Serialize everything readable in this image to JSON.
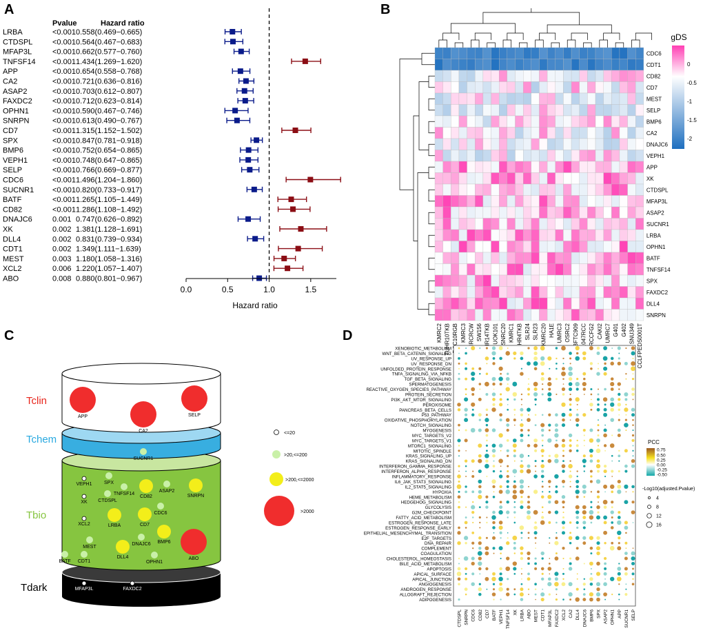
{
  "panels": {
    "A": {
      "label": "A",
      "col_pvalue": "Pvalue",
      "col_hr": "Hazard ratio",
      "xlabel": "Hazard ratio",
      "ticks": [
        "0.0",
        "0.5",
        "1.0",
        "1.5"
      ]
    },
    "B": {
      "label": "B",
      "legend_title": "gDS",
      "legend_ticks": [
        "0",
        "-0.5",
        "-1",
        "-1.5",
        "-2"
      ]
    },
    "C": {
      "label": "C",
      "tier_labels": [
        "Tclin",
        "Tchem",
        "Tbio",
        "Tdark"
      ],
      "legend": [
        "<=20",
        ">20,<=200",
        ">200,<=2000",
        ">2000"
      ]
    },
    "D": {
      "label": "D",
      "legend_title": "PCC",
      "legend_ticks": [
        "0.75",
        "0.50",
        "0.25",
        "0.00",
        "-0.25",
        "-0.50"
      ],
      "size_title": "-Log10(adjusted.Pvalue)",
      "size_ticks": [
        "4",
        "8",
        "12",
        "16"
      ]
    }
  },
  "chart_data": [
    {
      "type": "forest",
      "title": "A",
      "xlabel": "Hazard ratio",
      "xlim": [
        0,
        1.8
      ],
      "reference_line": 1.0,
      "rows": [
        {
          "gene": "LRBA",
          "p": "<0.001",
          "hr_text": "0.558(0.469−0.665)",
          "hr": 0.558,
          "lo": 0.469,
          "hi": 0.665
        },
        {
          "gene": "CTDSPL",
          "p": "<0.001",
          "hr_text": "0.564(0.467−0.683)",
          "hr": 0.564,
          "lo": 0.467,
          "hi": 0.683
        },
        {
          "gene": "MFAP3L",
          "p": "<0.001",
          "hr_text": "0.662(0.577−0.760)",
          "hr": 0.662,
          "lo": 0.577,
          "hi": 0.76
        },
        {
          "gene": "TNFSF14",
          "p": "<0.001",
          "hr_text": "1.434(1.269−1.620)",
          "hr": 1.434,
          "lo": 1.269,
          "hi": 1.62
        },
        {
          "gene": "APP",
          "p": "<0.001",
          "hr_text": "0.654(0.558−0.768)",
          "hr": 0.654,
          "lo": 0.558,
          "hi": 0.768
        },
        {
          "gene": "CA2",
          "p": "<0.001",
          "hr_text": "0.721(0.636−0.816)",
          "hr": 0.721,
          "lo": 0.636,
          "hi": 0.816
        },
        {
          "gene": "ASAP2",
          "p": "<0.001",
          "hr_text": "0.703(0.612−0.807)",
          "hr": 0.703,
          "lo": 0.612,
          "hi": 0.807
        },
        {
          "gene": "FAXDC2",
          "p": "<0.001",
          "hr_text": "0.712(0.623−0.814)",
          "hr": 0.712,
          "lo": 0.623,
          "hi": 0.814
        },
        {
          "gene": "OPHN1",
          "p": "<0.001",
          "hr_text": "0.590(0.467−0.746)",
          "hr": 0.59,
          "lo": 0.467,
          "hi": 0.746
        },
        {
          "gene": "SNRPN",
          "p": "<0.001",
          "hr_text": "0.613(0.490−0.767)",
          "hr": 0.613,
          "lo": 0.49,
          "hi": 0.767
        },
        {
          "gene": "CD7",
          "p": "<0.001",
          "hr_text": "1.315(1.152−1.502)",
          "hr": 1.315,
          "lo": 1.152,
          "hi": 1.502
        },
        {
          "gene": "SPX",
          "p": "<0.001",
          "hr_text": "0.847(0.781−0.918)",
          "hr": 0.847,
          "lo": 0.781,
          "hi": 0.918
        },
        {
          "gene": "BMP6",
          "p": "<0.001",
          "hr_text": "0.752(0.654−0.865)",
          "hr": 0.752,
          "lo": 0.654,
          "hi": 0.865
        },
        {
          "gene": "VEPH1",
          "p": "<0.001",
          "hr_text": "0.748(0.647−0.865)",
          "hr": 0.748,
          "lo": 0.647,
          "hi": 0.865
        },
        {
          "gene": "SELP",
          "p": "<0.001",
          "hr_text": "0.766(0.669−0.877)",
          "hr": 0.766,
          "lo": 0.669,
          "hi": 0.877
        },
        {
          "gene": "CDC6",
          "p": "<0.001",
          "hr_text": "1.496(1.204−1.860)",
          "hr": 1.496,
          "lo": 1.204,
          "hi": 1.86
        },
        {
          "gene": "SUCNR1",
          "p": "<0.001",
          "hr_text": "0.820(0.733−0.917)",
          "hr": 0.82,
          "lo": 0.733,
          "hi": 0.917
        },
        {
          "gene": "BATF",
          "p": "<0.001",
          "hr_text": "1.265(1.105−1.449)",
          "hr": 1.265,
          "lo": 1.105,
          "hi": 1.449
        },
        {
          "gene": "CD82",
          "p": "<0.001",
          "hr_text": "1.286(1.108−1.492)",
          "hr": 1.286,
          "lo": 1.108,
          "hi": 1.492
        },
        {
          "gene": "DNAJC6",
          "p": "0.001",
          "hr_text": "0.747(0.626−0.892)",
          "hr": 0.747,
          "lo": 0.626,
          "hi": 0.892
        },
        {
          "gene": "XK",
          "p": "0.002",
          "hr_text": "1.381(1.128−1.691)",
          "hr": 1.381,
          "lo": 1.128,
          "hi": 1.691
        },
        {
          "gene": "DLL4",
          "p": "0.002",
          "hr_text": "0.831(0.739−0.934)",
          "hr": 0.831,
          "lo": 0.739,
          "hi": 0.934
        },
        {
          "gene": "CDT1",
          "p": "0.002",
          "hr_text": "1.349(1.111−1.639)",
          "hr": 1.349,
          "lo": 1.111,
          "hi": 1.639
        },
        {
          "gene": "MEST",
          "p": "0.003",
          "hr_text": "1.180(1.058−1.316)",
          "hr": 1.18,
          "lo": 1.058,
          "hi": 1.316
        },
        {
          "gene": "XCL2",
          "p": "0.006",
          "hr_text": "1.220(1.057−1.407)",
          "hr": 1.22,
          "lo": 1.057,
          "hi": 1.407
        },
        {
          "gene": "ABO",
          "p": "0.008",
          "hr_text": "0.880(0.801−0.967)",
          "hr": 0.88,
          "lo": 0.801,
          "hi": 0.967
        }
      ]
    },
    {
      "type": "heatmap",
      "title": "B",
      "value_label": "gDS",
      "value_range": [
        -2.3,
        1.0
      ],
      "rows": [
        "CDC6",
        "CDT1",
        "CD82",
        "CD7",
        "MEST",
        "SELP",
        "BMP6",
        "CA2",
        "DNAJC6",
        "VEPH1",
        "APP",
        "XK",
        "CTDSPL",
        "MFAP3L",
        "ASAP2",
        "SUCNR1",
        "LRBA",
        "OPHN1",
        "BATF",
        "TNFSF14",
        "SPX",
        "FAXDC2",
        "DLL4",
        "SNRPN"
      ],
      "columns": [
        "KMRC2",
        "TUHR10TKB",
        "RCC10RGB",
        "KMRC3",
        "VMRCRCW",
        "SW156",
        "TUHR14TKB",
        "UOK101",
        "SNRC20",
        "KMRC1",
        "TUHR4TKB",
        "SLR24",
        "SLR23",
        "KMRC20",
        "HA1E",
        "UMRC3",
        "OSRC2",
        "BFTC909",
        "LB1047RCC",
        "RCCFG2",
        "CAKI2",
        "UMRC7",
        "G401",
        "G402",
        "SNU349",
        "CCLFPEDS0001T"
      ]
    },
    {
      "type": "pyramid",
      "title": "C",
      "tiers": [
        {
          "name": "Tclin",
          "genes": [
            "APP",
            "CA2",
            "SELP"
          ]
        },
        {
          "name": "Tchem",
          "genes": [
            "SUCNR1"
          ]
        },
        {
          "name": "Tbio",
          "genes": [
            "VEPH1",
            "SPX",
            "TNFSF14",
            "CD82",
            "ASAP2",
            "SNRPN",
            "XK",
            "CTDSPL",
            "CDC6",
            "XCL2",
            "LRBA",
            "CD7",
            "MEST",
            "DNAJC6",
            "BMP6",
            "ABO",
            "BATF",
            "CDT1",
            "DLL4",
            "OPHN1"
          ]
        },
        {
          "name": "Tdark",
          "genes": [
            "MFAP3L",
            "FAXDC2"
          ]
        }
      ],
      "size_categories": [
        "<=20",
        ">20,<=200",
        ">200,<=2000",
        ">2000"
      ]
    },
    {
      "type": "dotplot",
      "title": "D",
      "color_label": "PCC",
      "color_range": [
        -0.5,
        0.75
      ],
      "size_label": "-Log10(adjusted.Pvalue)",
      "rows": [
        "XENOBIOTIC_METABOLISM",
        "WNT_BETA_CATENIN_SIGNALING",
        "UV_RESPONSE_UP",
        "UV_RESPONSE_DN",
        "UNFOLDED_PROTEIN_RESPONSE",
        "TNFA_SIGNALING_VIA_NFKB",
        "TGF_BETA_SIGNALING",
        "SPERMATOGENESIS",
        "REACTIVE_OXYGEN_SPECIES_PATHWAY",
        "PROTEIN_SECRETION",
        "PI3K_AKT_MTOR_SIGNALING",
        "PEROXISOME",
        "PANCREAS_BETA_CELLS",
        "P53_PATHWAY",
        "OXIDATIVE_PHOSPHORYLATION",
        "NOTCH_SIGNALING",
        "MYOGENESIS",
        "MYC_TARGETS_V2",
        "MYC_TARGETS_V1",
        "MTORC1_SIGNALING",
        "MITOTIC_SPINDLE",
        "KRAS_SIGNALING_UP",
        "KRAS_SIGNALING_DN",
        "INTERFERON_GAMMA_RESPONSE",
        "INTERFERON_ALPHA_RESPONSE",
        "INFLAMMATORY_RESPONSE",
        "IL6_JAK_STAT3_SIGNALING",
        "IL2_STAT5_SIGNALING",
        "HYPOXIA",
        "HEME_METABOLISM",
        "HEDGEHOG_SIGNALING",
        "GLYCOLYSIS",
        "G2M_CHECKPOINT",
        "FATTY_ACID_METABOLISM",
        "ESTROGEN_RESPONSE_LATE",
        "ESTROGEN_RESPONSE_EARLY",
        "EPITHELIAL_MESENCHYMAL_TRANSITION",
        "E2F_TARGETS",
        "DNA_REPAIR",
        "COMPLEMENT",
        "COAGULATION",
        "CHOLESTEROL_HOMEOSTASIS",
        "BILE_ACID_METABOLISM",
        "APOPTOSIS",
        "APICAL_SURFACE",
        "APICAL_JUNCTION",
        "ANGIOGENESIS",
        "ANDROGEN_RESPONSE",
        "ALLOGRAFT_REJECTION",
        "ADIPOGENESIS"
      ],
      "columns": [
        "CTDSPL",
        "SNRPN",
        "CDC6",
        "CD82",
        "CD7",
        "BATF",
        "VEPH1",
        "TNFSF14",
        "XK",
        "LRBA",
        "ABO",
        "MEST",
        "CDT1",
        "MFAP3L",
        "FAXDC2",
        "XCL2",
        "CA2",
        "DLL4",
        "DNAJC6",
        "BMP6",
        "SPX",
        "ASAP2",
        "OPHN1",
        "APP",
        "SUCNR1",
        "SELP"
      ]
    }
  ]
}
